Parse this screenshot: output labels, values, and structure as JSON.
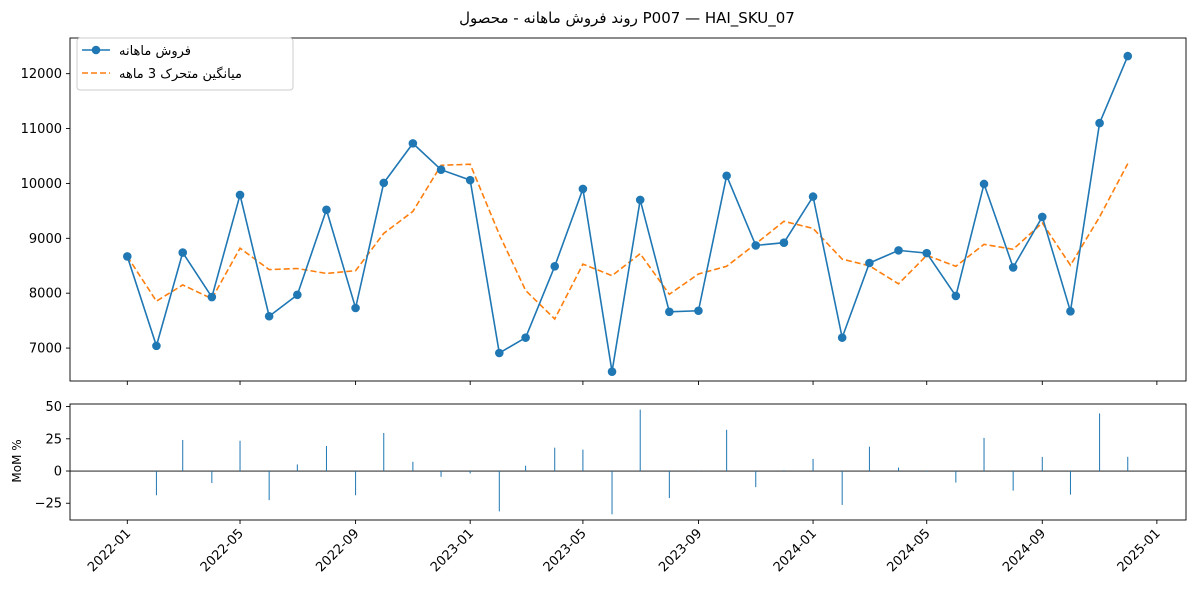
{
  "chart_data": [
    {
      "type": "line",
      "title": "روند فروش ماهانه - محصول P007 — HAI_SKU_07",
      "xlabel": "",
      "ylabel": "",
      "x": [
        "2022-01",
        "2022-02",
        "2022-03",
        "2022-04",
        "2022-05",
        "2022-06",
        "2022-07",
        "2022-08",
        "2022-09",
        "2022-10",
        "2022-11",
        "2022-12",
        "2023-01",
        "2023-02",
        "2023-03",
        "2023-04",
        "2023-05",
        "2023-06",
        "2023-07",
        "2023-08",
        "2023-09",
        "2023-10",
        "2023-11",
        "2023-12",
        "2024-01",
        "2024-02",
        "2024-03",
        "2024-04",
        "2024-05",
        "2024-06",
        "2024-07",
        "2024-08",
        "2024-09",
        "2024-10",
        "2024-11",
        "2024-12"
      ],
      "series": [
        {
          "name": "فروش ماهانه",
          "style": "solid-marker",
          "color": "#1f77b4",
          "values": [
            8670,
            7040,
            8740,
            7930,
            9790,
            7580,
            7970,
            9520,
            7730,
            10010,
            10730,
            10250,
            10060,
            6910,
            7190,
            8490,
            9900,
            6570,
            9700,
            7660,
            7680,
            10140,
            8870,
            8920,
            9760,
            7190,
            8550,
            8780,
            8730,
            7950,
            9990,
            8470,
            9390,
            7670,
            11100,
            12320
          ]
        },
        {
          "name": "میانگین متحرک 3 ماهه",
          "style": "dashed",
          "color": "#ff7f0e",
          "values": [
            8670,
            7855,
            8150,
            7900,
            8820,
            8430,
            8450,
            8360,
            8410,
            9090,
            9490,
            10330,
            10350,
            9070,
            8050,
            7530,
            8530,
            8320,
            8720,
            7980,
            8350,
            8490,
            8900,
            9310,
            9180,
            8620,
            8500,
            8170,
            8690,
            8490,
            8890,
            8800,
            9280,
            8510,
            9390,
            10360
          ]
        }
      ],
      "ylim": [
        6400,
        12650
      ],
      "yticks": [
        7000,
        8000,
        9000,
        10000,
        11000,
        12000
      ],
      "legend": "upper-left",
      "grid": false
    },
    {
      "type": "bar",
      "ylabel": "MoM %",
      "color": "#1f77b4",
      "x": [
        "2022-01",
        "2022-02",
        "2022-03",
        "2022-04",
        "2022-05",
        "2022-06",
        "2022-07",
        "2022-08",
        "2022-09",
        "2022-10",
        "2022-11",
        "2022-12",
        "2023-01",
        "2023-02",
        "2023-03",
        "2023-04",
        "2023-05",
        "2023-06",
        "2023-07",
        "2023-08",
        "2023-09",
        "2023-10",
        "2023-11",
        "2023-12",
        "2024-01",
        "2024-02",
        "2024-03",
        "2024-04",
        "2024-05",
        "2024-06",
        "2024-07",
        "2024-08",
        "2024-09",
        "2024-10",
        "2024-11",
        "2024-12"
      ],
      "values": [
        null,
        -18.8,
        24.1,
        -9.3,
        23.5,
        -22.6,
        5.1,
        19.4,
        -18.8,
        29.5,
        7.2,
        -4.5,
        -1.9,
        -31.3,
        4.1,
        18.1,
        16.6,
        -33.6,
        47.6,
        -21.0,
        0.3,
        32.0,
        -12.5,
        0.6,
        9.4,
        -26.3,
        18.9,
        2.7,
        -0.6,
        -8.9,
        25.7,
        -15.2,
        10.9,
        -18.3,
        44.7,
        11.0
      ],
      "ylim": [
        -38,
        52
      ],
      "yticks": [
        -25,
        0,
        25,
        50
      ],
      "xticks": [
        "2022-01",
        "2022-05",
        "2022-09",
        "2023-01",
        "2023-05",
        "2023-09",
        "2024-01",
        "2024-05",
        "2024-09",
        "2025-01"
      ],
      "zero_line": true
    }
  ]
}
